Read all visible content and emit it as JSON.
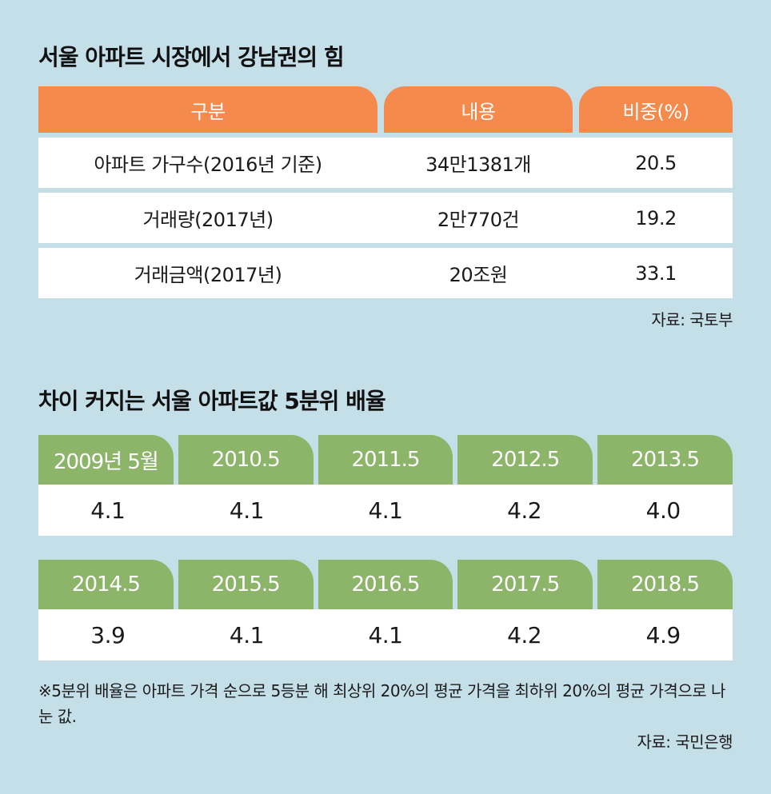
{
  "chart_data": [
    {
      "type": "table",
      "title": "서울 아파트 시장에서 강남권의 힘",
      "columns": [
        "구분",
        "내용",
        "비중(%)"
      ],
      "rows": [
        [
          "아파트 가구수(2016년 기준)",
          "34만1381개",
          "20.5"
        ],
        [
          "거래량(2017년)",
          "2만770건",
          "19.2"
        ],
        [
          "거래금액(2017년)",
          "20조원",
          "33.1"
        ]
      ],
      "source": "자료: 국토부"
    },
    {
      "type": "table",
      "title": "차이 커지는 서울 아파트값 5분위 배율",
      "categories": [
        "2009년 5월",
        "2010.5",
        "2011.5",
        "2012.5",
        "2013.5",
        "2014.5",
        "2015.5",
        "2016.5",
        "2017.5",
        "2018.5"
      ],
      "values": [
        "4.1",
        "4.1",
        "4.1",
        "4.2",
        "4.0",
        "3.9",
        "4.1",
        "4.1",
        "4.2",
        "4.9"
      ],
      "note": "※5분위 배율은 아파트 가격 순으로 5등분 해 최상위 20%의 평균 가격을 최하위 20%의 평균 가격으로 나눈 값.",
      "source": "자료: 국민은행"
    }
  ],
  "colors": {
    "background": "#c5dfe9",
    "header_orange": "#f48a4b",
    "header_green": "#8cb56a"
  }
}
